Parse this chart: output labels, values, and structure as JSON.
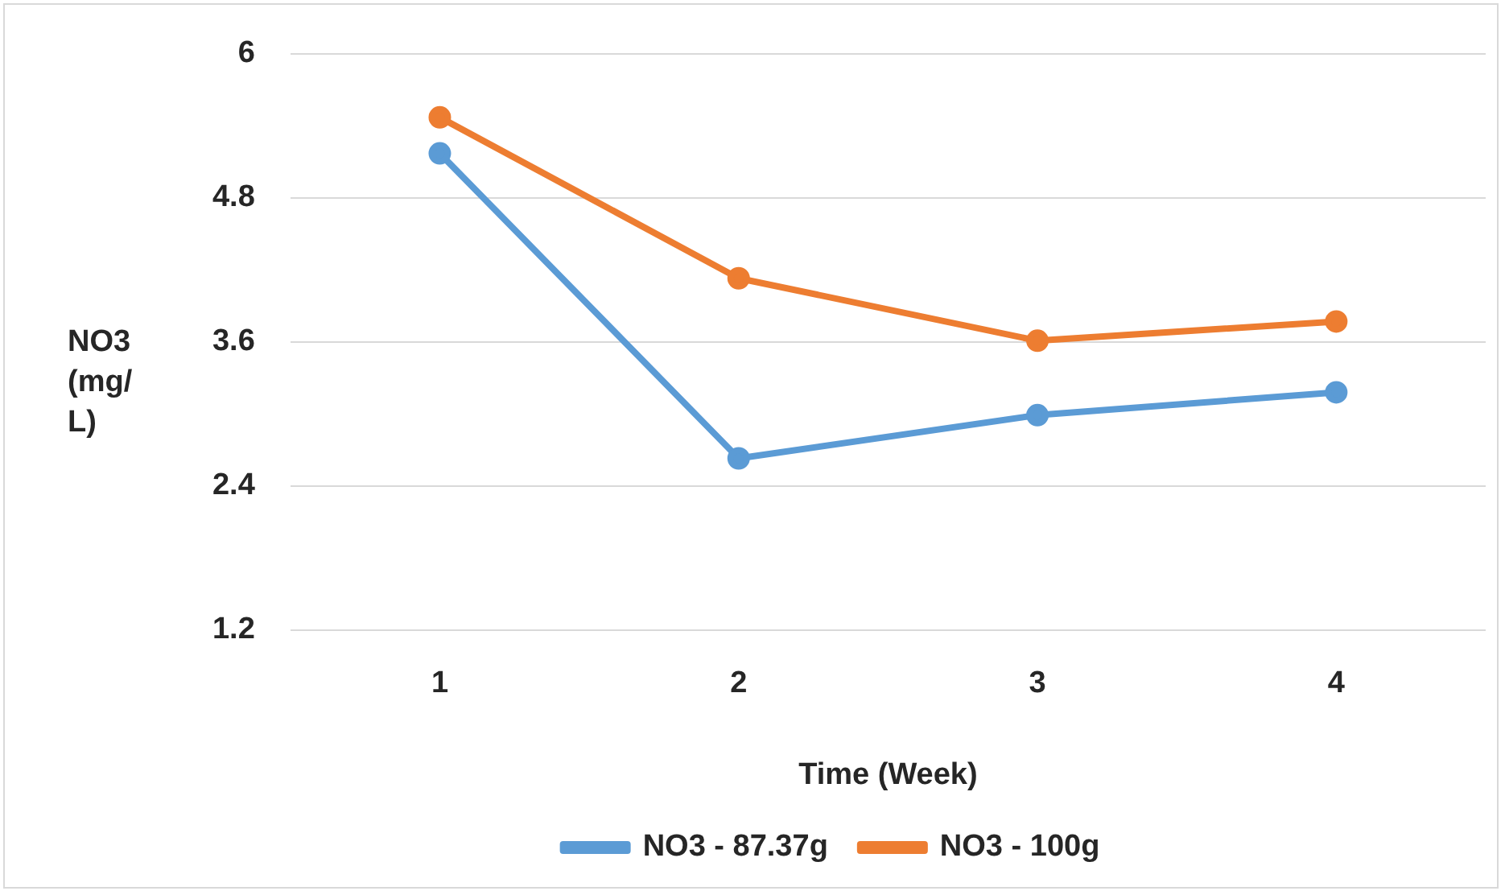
{
  "chart_data": {
    "type": "line",
    "xlabel": "Time (Week)",
    "ylabel": "NO3 (mg/L)",
    "categories": [
      "1",
      "2",
      "3",
      "4"
    ],
    "series": [
      {
        "name": "NO3 - 87.37g",
        "color": "#5b9bd5",
        "values": [
          5.17,
          2.63,
          2.99,
          3.18
        ]
      },
      {
        "name": "NO3 - 100g",
        "color": "#ed7d31",
        "values": [
          5.47,
          4.13,
          3.61,
          3.77
        ]
      }
    ],
    "ylim": [
      1.2,
      6
    ],
    "yticks": [
      {
        "value": 1.2,
        "label": "1.2"
      },
      {
        "value": 2.4,
        "label": "2.4"
      },
      {
        "value": 3.6,
        "label": "3.6"
      },
      {
        "value": 4.8,
        "label": "4.8"
      },
      6
    ],
    "grid": "y",
    "legend": "bottom",
    "marker": "circle",
    "line_style": "solid"
  }
}
